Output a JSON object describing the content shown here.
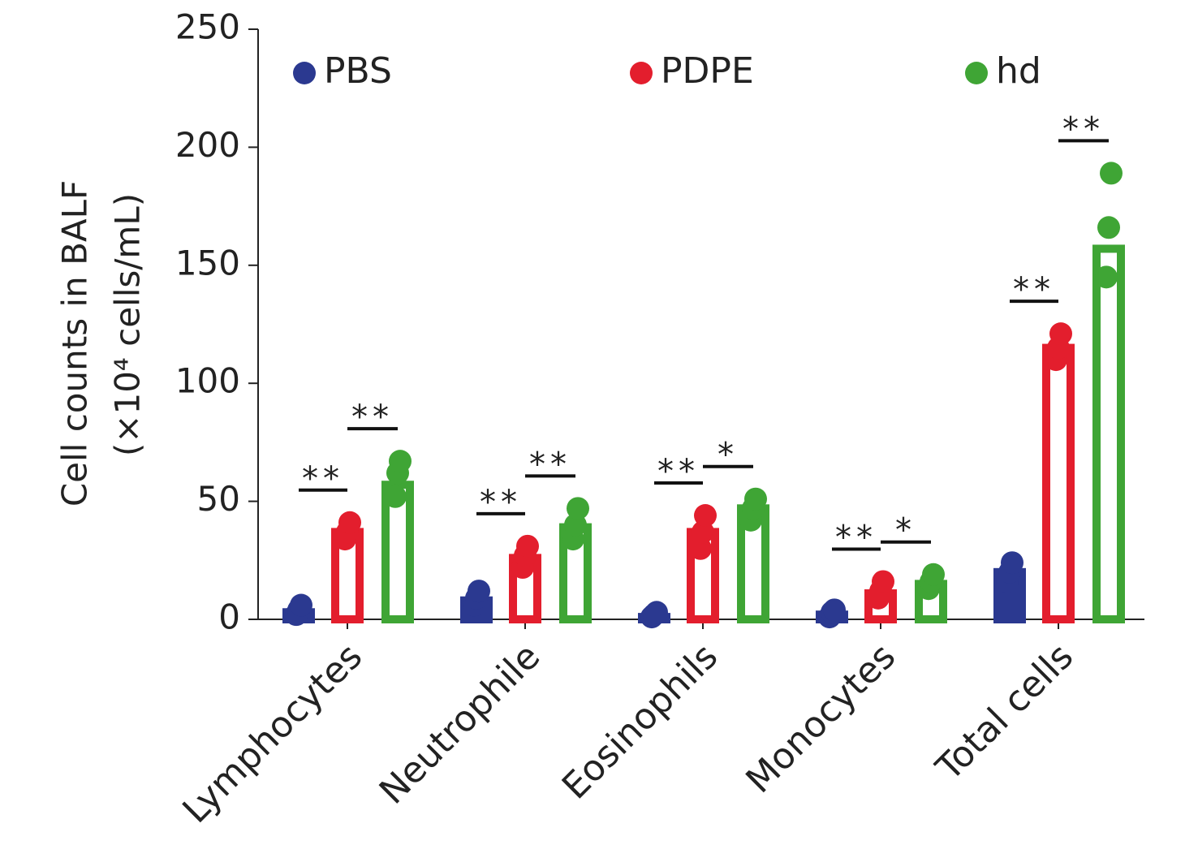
{
  "chart_data": {
    "type": "bar",
    "ylabel": [
      "Cell counts in BALF",
      "(×10⁴ cells/mL)"
    ],
    "categories": [
      "Lymphocytes",
      "Neutrophile",
      "Eosinophils",
      "Monocytes",
      "Total cells"
    ],
    "series": [
      {
        "name": "PBS",
        "color": "#2b3990",
        "values": [
          3,
          8,
          1,
          2,
          20
        ],
        "points": [
          [
            2,
            4,
            6
          ],
          [
            6,
            9,
            12
          ],
          [
            1,
            2,
            3
          ],
          [
            1,
            3,
            4
          ],
          [
            16,
            20,
            24
          ]
        ]
      },
      {
        "name": "PDPE",
        "color": "#e31e2d",
        "values": [
          37,
          26,
          37,
          11,
          115
        ],
        "points": [
          [
            34,
            37,
            41
          ],
          [
            22,
            27,
            31
          ],
          [
            30,
            37,
            44
          ],
          [
            9,
            12,
            16
          ],
          [
            110,
            115,
            121
          ]
        ]
      },
      {
        "name": "hd",
        "color": "#3fa535",
        "values": [
          57,
          39,
          47,
          15,
          157
        ],
        "points": [
          [
            52,
            62,
            67
          ],
          [
            34,
            40,
            47
          ],
          [
            42,
            47,
            51
          ],
          [
            13,
            16,
            19
          ],
          [
            145,
            166,
            189
          ]
        ]
      }
    ],
    "significance": [
      {
        "category": "Lymphocytes",
        "between": [
          "PBS",
          "PDPE"
        ],
        "label": "**"
      },
      {
        "category": "Lymphocytes",
        "between": [
          "PDPE",
          "hd"
        ],
        "label": "**"
      },
      {
        "category": "Neutrophile",
        "between": [
          "PBS",
          "PDPE"
        ],
        "label": "**"
      },
      {
        "category": "Neutrophile",
        "between": [
          "PDPE",
          "hd"
        ],
        "label": "**"
      },
      {
        "category": "Eosinophils",
        "between": [
          "PBS",
          "PDPE"
        ],
        "label": "**"
      },
      {
        "category": "Eosinophils",
        "between": [
          "PDPE",
          "hd"
        ],
        "label": "*"
      },
      {
        "category": "Monocytes",
        "between": [
          "PBS",
          "PDPE"
        ],
        "label": "**"
      },
      {
        "category": "Monocytes",
        "between": [
          "PDPE",
          "hd"
        ],
        "label": "*"
      },
      {
        "category": "Total cells",
        "between": [
          "PBS",
          "PDPE"
        ],
        "label": "**"
      },
      {
        "category": "Total cells",
        "between": [
          "PDPE",
          "hd"
        ],
        "label": "**"
      }
    ],
    "ylim": [
      0,
      250
    ],
    "yticks": [
      0,
      50,
      100,
      150,
      200,
      250
    ],
    "legend": "top"
  }
}
